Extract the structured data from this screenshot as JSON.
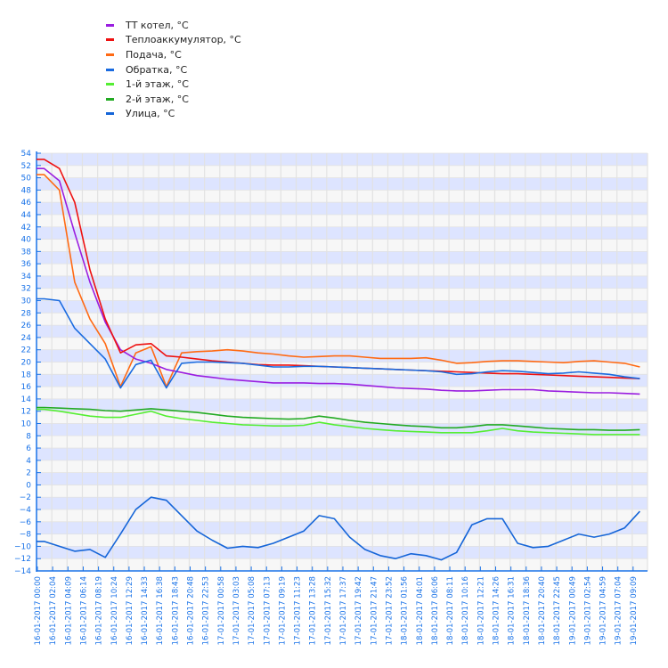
{
  "chart_data": {
    "type": "line",
    "title": "",
    "xlabel": "",
    "ylabel": "",
    "ylim": [
      -14,
      54
    ],
    "ytick_step": 2,
    "grid": true,
    "legend_position": "top-left",
    "x": [
      "16-01-2017 00:00",
      "16-01-2017 02:04",
      "16-01-2017 04:09",
      "16-01-2017 06:14",
      "16-01-2017 08:19",
      "16-01-2017 10:24",
      "16-01-2017 12:29",
      "16-01-2017 14:33",
      "16-01-2017 16:38",
      "16-01-2017 18:43",
      "16-01-2017 20:48",
      "16-01-2017 22:53",
      "17-01-2017 00:58",
      "17-01-2017 03:03",
      "17-01-2017 05:08",
      "17-01-2017 07:13",
      "17-01-2017 09:19",
      "17-01-2017 11:23",
      "17-01-2017 13:28",
      "17-01-2017 15:32",
      "17-01-2017 17:37",
      "17-01-2017 19:42",
      "17-01-2017 21:47",
      "17-01-2017 23:52",
      "18-01-2017 01:56",
      "18-01-2017 04:01",
      "18-01-2017 06:06",
      "18-01-2017 08:11",
      "18-01-2017 10:16",
      "18-01-2017 12:21",
      "18-01-2017 14:26",
      "18-01-2017 16:31",
      "18-01-2017 18:36",
      "18-01-2017 20:40",
      "18-01-2017 22:45",
      "19-01-2017 00:49",
      "19-01-2017 02:54",
      "19-01-2017 04:59",
      "19-01-2017 07:04",
      "19-01-2017 09:09"
    ],
    "series": [
      {
        "name": "ТТ котел, °C",
        "color": "#9a1ee0",
        "values": [
          51.5,
          49.5,
          41,
          33,
          26.5,
          22,
          20.5,
          19.8,
          18.8,
          18.3,
          17.8,
          17.5,
          17.2,
          17,
          16.8,
          16.6,
          16.6,
          16.6,
          16.5,
          16.5,
          16.4,
          16.2,
          16,
          15.8,
          15.7,
          15.6,
          15.4,
          15.3,
          15.3,
          15.4,
          15.5,
          15.5,
          15.5,
          15.3,
          15.2,
          15.1,
          15,
          15,
          14.9,
          14.8
        ]
      },
      {
        "name": "Теплоаккумулятор, °C",
        "color": "#ee1111",
        "values": [
          53,
          51.5,
          46,
          35,
          27,
          21.5,
          22.8,
          23,
          21,
          20.8,
          20.5,
          20.2,
          20,
          19.8,
          19.6,
          19.5,
          19.5,
          19.4,
          19.3,
          19.2,
          19.1,
          19,
          18.9,
          18.8,
          18.7,
          18.6,
          18.5,
          18.4,
          18.3,
          18.2,
          18.1,
          18.1,
          18,
          17.9,
          17.8,
          17.7,
          17.6,
          17.5,
          17.4,
          17.3
        ]
      },
      {
        "name": "Подача, °C",
        "color": "#ff6a14",
        "values": [
          50.5,
          48,
          33,
          27,
          23,
          16,
          21.5,
          22.5,
          16,
          21.5,
          21.7,
          21.8,
          22,
          21.8,
          21.5,
          21.3,
          21,
          20.8,
          20.9,
          21,
          21,
          20.8,
          20.6,
          20.6,
          20.6,
          20.7,
          20.3,
          19.8,
          19.9,
          20.1,
          20.2,
          20.2,
          20.1,
          20,
          19.9,
          20.1,
          20.2,
          20,
          19.8,
          19.2
        ]
      },
      {
        "name": "Обратка, °C",
        "color": "#1a6be0",
        "values": [
          30.3,
          30,
          25.5,
          23,
          20.5,
          15.8,
          19.6,
          20.3,
          15.8,
          19.8,
          20,
          20,
          19.9,
          19.8,
          19.5,
          19.2,
          19.2,
          19.3,
          19.3,
          19.2,
          19.1,
          19,
          18.9,
          18.8,
          18.7,
          18.6,
          18.4,
          18,
          18.1,
          18.4,
          18.6,
          18.5,
          18.3,
          18.1,
          18.2,
          18.4,
          18.2,
          18,
          17.6,
          17.3
        ]
      },
      {
        "name": "1-й этаж, °C",
        "color": "#55ee33",
        "values": [
          12.3,
          12,
          11.6,
          11.2,
          11,
          11,
          11.5,
          12,
          11.2,
          10.8,
          10.5,
          10.2,
          10,
          9.8,
          9.7,
          9.6,
          9.6,
          9.7,
          10.2,
          9.8,
          9.5,
          9.2,
          9,
          8.8,
          8.7,
          8.6,
          8.5,
          8.5,
          8.5,
          8.8,
          9.2,
          8.8,
          8.6,
          8.5,
          8.4,
          8.3,
          8.2,
          8.2,
          8.2,
          8.2
        ]
      },
      {
        "name": "2-й этаж, °C",
        "color": "#22aa22",
        "values": [
          12.6,
          12.5,
          12.4,
          12.3,
          12.1,
          12,
          12.2,
          12.4,
          12.2,
          12,
          11.8,
          11.5,
          11.2,
          11,
          10.9,
          10.8,
          10.7,
          10.8,
          11.2,
          10.9,
          10.5,
          10.2,
          10,
          9.8,
          9.6,
          9.5,
          9.3,
          9.3,
          9.5,
          9.8,
          9.8,
          9.6,
          9.4,
          9.2,
          9.1,
          9,
          9,
          8.9,
          8.9,
          9
        ]
      },
      {
        "name": "Улица, °C",
        "color": "#1565d8",
        "values": [
          -9.2,
          -10,
          -10.8,
          -10.5,
          -11.8,
          -8,
          -4,
          -2,
          -2.5,
          -5,
          -7.5,
          -9,
          -10.3,
          -10,
          -10.2,
          -9.5,
          -8.5,
          -7.5,
          -5,
          -5.5,
          -8.5,
          -10.5,
          -11.5,
          -12,
          -11.2,
          -11.5,
          -12.2,
          -11,
          -6.5,
          -5.5,
          -5.5,
          -9.5,
          -10.2,
          -10,
          -9,
          -8,
          -8.5,
          -8,
          -7,
          -4.3
        ]
      }
    ],
    "colors": {
      "band_light": "#f7f7f7",
      "band_dark": "#dde4ff",
      "grid_line": "#e2e2e2",
      "axis": "#1a73e8"
    }
  },
  "legend": {
    "items": [
      {
        "label": "ТТ котел, °C",
        "color": "#9a1ee0"
      },
      {
        "label": "Теплоаккумулятор, °C",
        "color": "#ee1111"
      },
      {
        "label": "Подача, °C",
        "color": "#ff6a14"
      },
      {
        "label": "Обратка, °C",
        "color": "#1a6be0"
      },
      {
        "label": "1-й этаж, °C",
        "color": "#55ee33"
      },
      {
        "label": "2-й этаж, °C",
        "color": "#22aa22"
      },
      {
        "label": "Улица, °C",
        "color": "#1565d8"
      }
    ]
  }
}
